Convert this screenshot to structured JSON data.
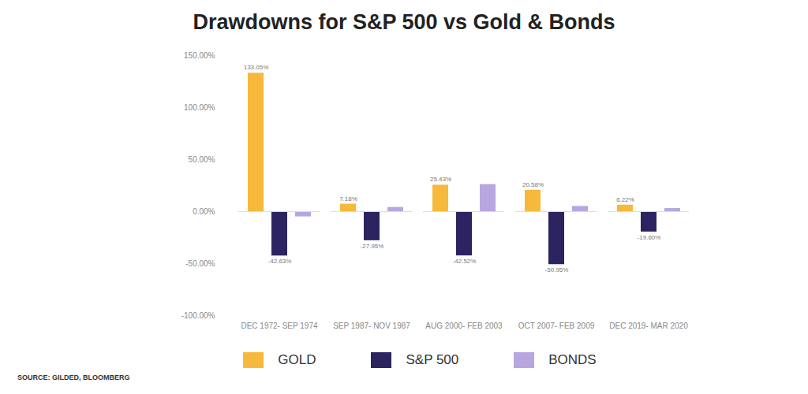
{
  "chart_data": {
    "type": "bar",
    "title": "Drawdowns for S&P 500 vs Gold & Bonds",
    "caption": "SOURCE: GILDED, BLOOMBERG",
    "categories": [
      "DEC 1972- SEP 1974",
      "SEP 1987- NOV 1987",
      "AUG 2000- FEB 2003",
      "OCT 2007- FEB 2009",
      "DEC 2019- MAR 2020"
    ],
    "series": [
      {
        "name": "GOLD",
        "color": "#f6b93b",
        "values": [
          133.05,
          7.18,
          25.43,
          20.58,
          6.22
        ],
        "value_labels": [
          "133.05%",
          "7.18%",
          "25.43%",
          "20.58%",
          "6.22%"
        ]
      },
      {
        "name": "S&P 500",
        "color": "#2b2461",
        "values": [
          -42.63,
          -27.95,
          -42.52,
          -50.95,
          -19.6
        ],
        "value_labels": [
          "-42.63%",
          "-27.95%",
          "-42.52%",
          "-50.95%",
          "-19.60%"
        ]
      },
      {
        "name": "BONDS",
        "color": "#b7a6df",
        "values": [
          -5,
          4,
          26,
          5,
          3
        ]
      }
    ],
    "ylim": [
      -100,
      150
    ],
    "yticks": [
      {
        "value": -100,
        "label": "-100.00%"
      },
      {
        "value": -50,
        "label": "-50.00%"
      },
      {
        "value": 0,
        "label": "0.00%"
      },
      {
        "value": 50,
        "label": "50.00%"
      },
      {
        "value": 100,
        "label": "100.00%"
      },
      {
        "value": 150,
        "label": "150.00%"
      }
    ],
    "grid": false,
    "data_labels": true,
    "legend": "bottom"
  }
}
